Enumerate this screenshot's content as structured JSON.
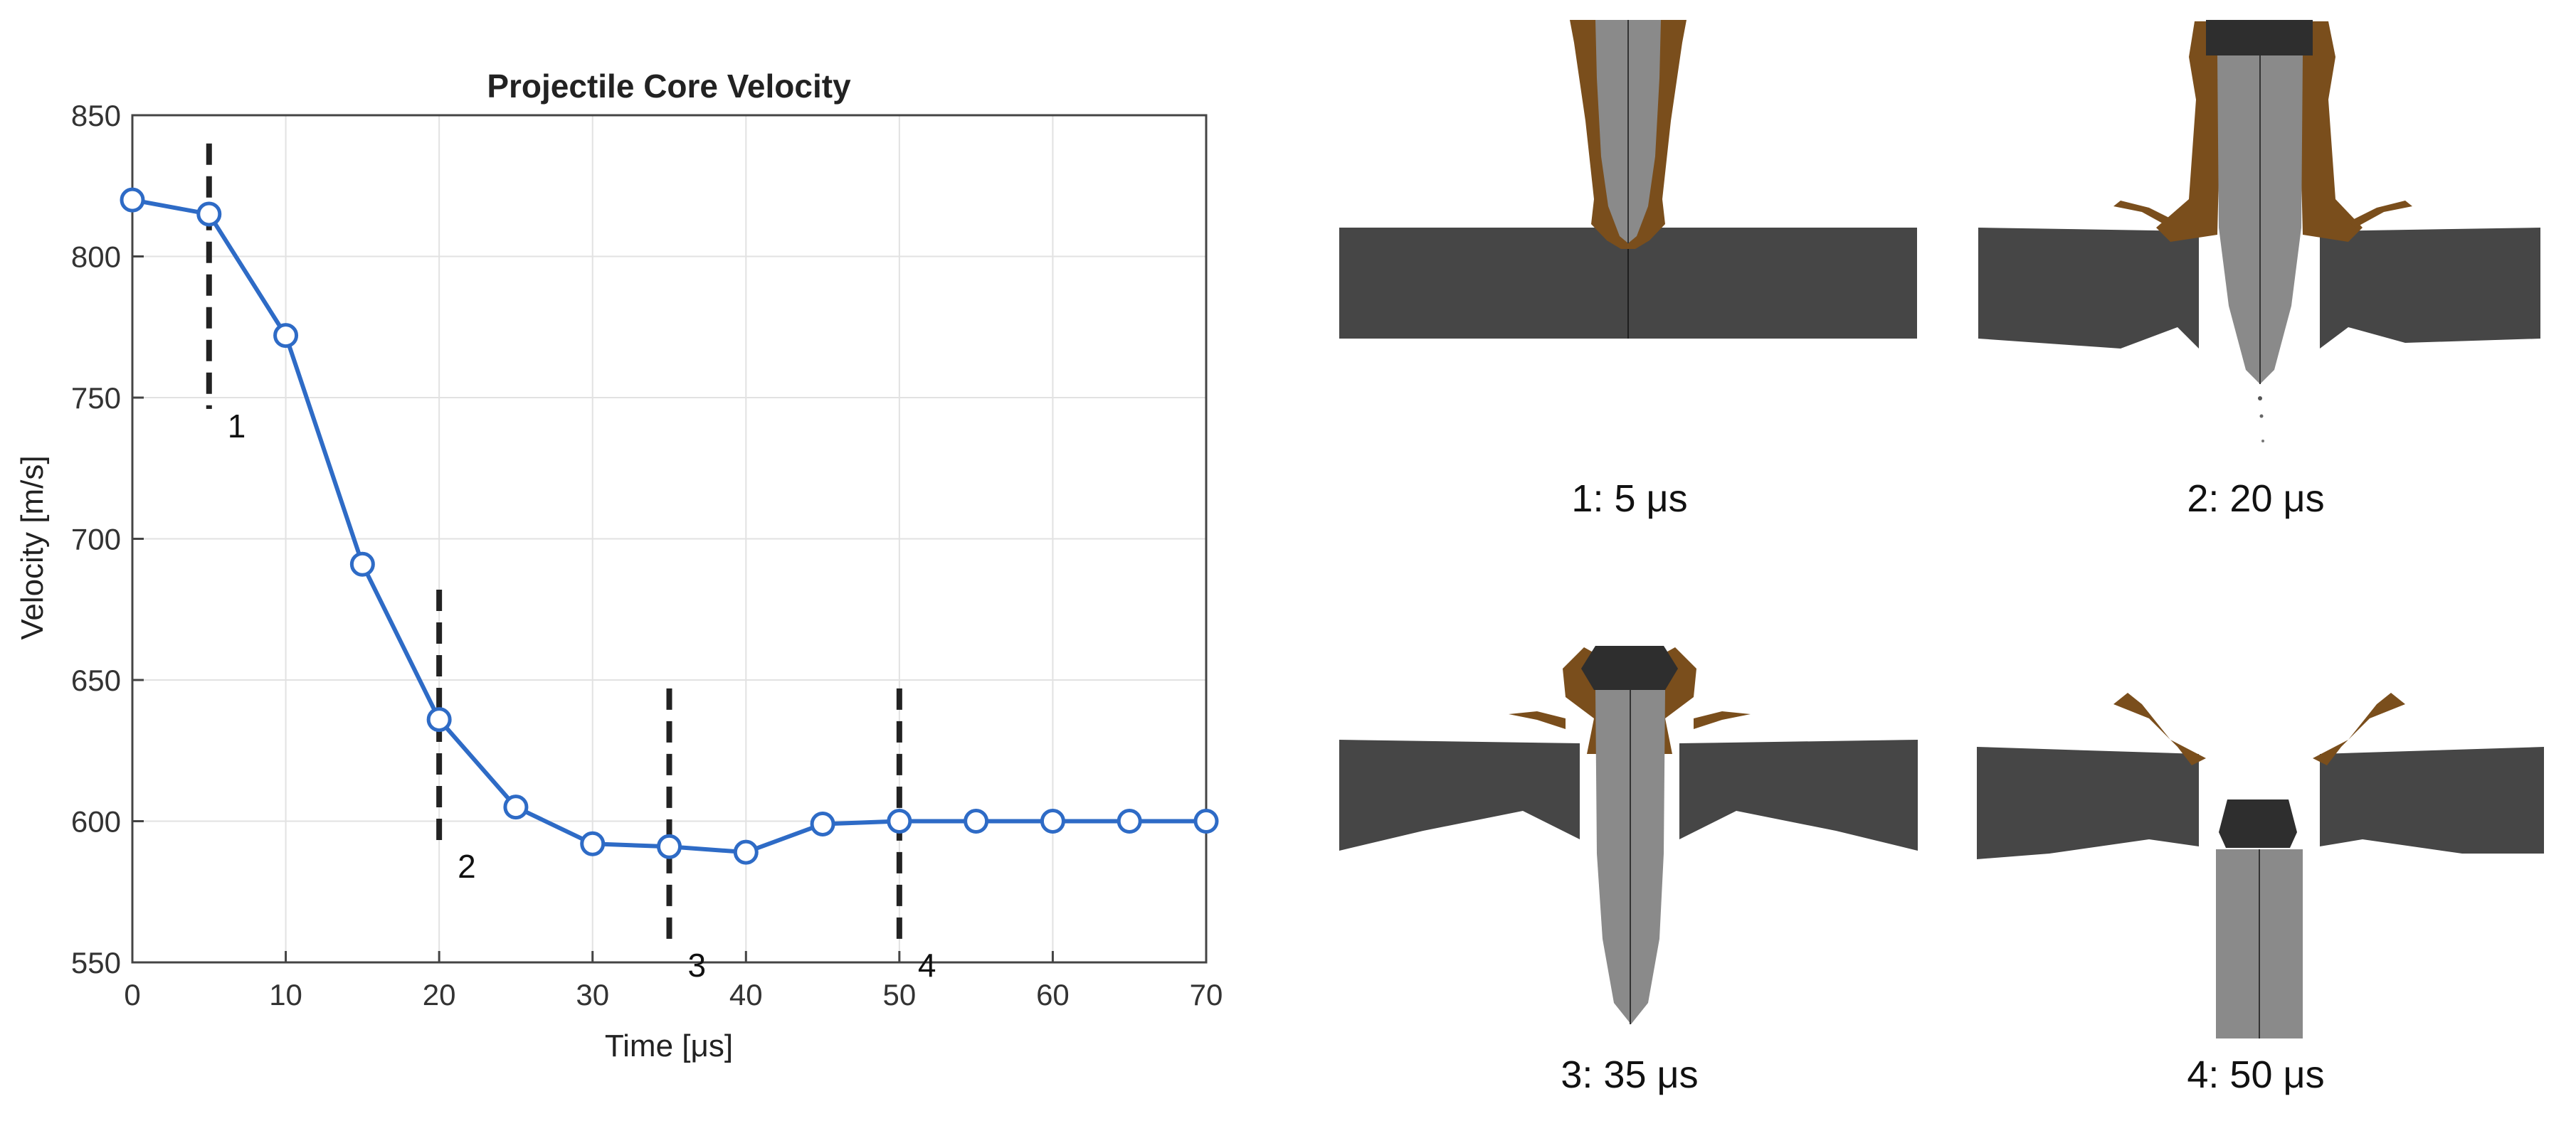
{
  "chart_data": {
    "type": "line",
    "title": "Projectile Core Velocity",
    "xlabel": "Time [μs]",
    "ylabel": "Velocity [m/s]",
    "xlim": [
      0,
      70
    ],
    "ylim": [
      550,
      850
    ],
    "xticks": [
      0,
      10,
      20,
      30,
      40,
      50,
      60,
      70
    ],
    "yticks": [
      550,
      600,
      650,
      700,
      750,
      800,
      850
    ],
    "grid": true,
    "series": [
      {
        "x": [
          0,
          5,
          10,
          15,
          20,
          25,
          30,
          35,
          40,
          45,
          50,
          55,
          60,
          65,
          70
        ],
        "values": [
          820,
          815,
          772,
          691,
          636,
          605,
          592,
          591,
          589,
          599,
          600,
          600,
          600,
          600,
          600
        ],
        "color": "#2e6bc6",
        "marker": "circle"
      }
    ],
    "annotations": [
      {
        "label": "1",
        "x": 5,
        "y_range": [
          746,
          840
        ]
      },
      {
        "label": "2",
        "x": 20,
        "y_range": [
          590,
          682
        ]
      },
      {
        "label": "3",
        "x": 35,
        "y_range": [
          555,
          647
        ]
      },
      {
        "label": "4",
        "x": 50,
        "y_range": [
          555,
          647
        ]
      }
    ]
  },
  "simulation": {
    "captions": [
      "1: 5 μs",
      "2: 20 μs",
      "3: 35 μs",
      "4: 50 μs"
    ],
    "colors": {
      "plate": "#464646",
      "core": "#8a8a8a",
      "jacket": "#7a4e1c",
      "cap": "#2e2e2e"
    }
  }
}
